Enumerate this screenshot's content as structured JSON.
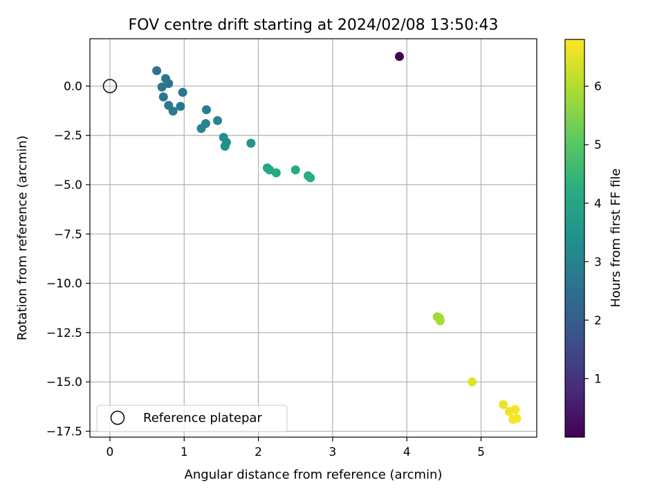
{
  "chart_data": {
    "type": "scatter",
    "title": "FOV centre drift starting at 2024/02/08 13:50:43",
    "xlabel": "Angular distance from reference (arcmin)",
    "ylabel": "Rotation from reference (arcmin)",
    "xlim": [
      -0.27,
      5.75
    ],
    "ylim": [
      -17.8,
      2.4
    ],
    "xticks": [
      0,
      1,
      2,
      3,
      4,
      5
    ],
    "yticks": [
      0.0,
      -2.5,
      -5.0,
      -7.5,
      -10.0,
      -12.5,
      -15.0,
      -17.5
    ],
    "xtick_labels": [
      "0",
      "1",
      "2",
      "3",
      "4",
      "5"
    ],
    "ytick_labels": [
      "0.0",
      "−2.5",
      "−5.0",
      "−7.5",
      "−10.0",
      "−12.5",
      "−15.0",
      "−17.5"
    ],
    "grid": true,
    "legend": {
      "position": "lower-left",
      "entries": [
        "Reference platepar"
      ]
    },
    "reference_point": {
      "x": 0,
      "y": 0
    },
    "colorbar": {
      "label": "Hours from first FF file",
      "colormap": "viridis",
      "range": [
        0.0,
        6.8
      ],
      "ticks": [
        1,
        2,
        3,
        4,
        5,
        6
      ],
      "tick_labels": [
        "1",
        "2",
        "3",
        "4",
        "5",
        "6"
      ]
    },
    "series": [
      {
        "name": "FOV centre",
        "points": [
          {
            "x": 3.9,
            "y": 1.5,
            "hours": 0.0
          },
          {
            "x": 0.63,
            "y": 0.78,
            "hours": 2.6
          },
          {
            "x": 0.75,
            "y": 0.38,
            "hours": 2.6
          },
          {
            "x": 0.79,
            "y": 0.13,
            "hours": 2.65
          },
          {
            "x": 0.7,
            "y": -0.05,
            "hours": 2.65
          },
          {
            "x": 0.98,
            "y": -0.32,
            "hours": 2.7
          },
          {
            "x": 0.72,
            "y": -0.55,
            "hours": 2.7
          },
          {
            "x": 0.79,
            "y": -0.98,
            "hours": 2.75
          },
          {
            "x": 0.95,
            "y": -1.03,
            "hours": 2.75
          },
          {
            "x": 0.85,
            "y": -1.27,
            "hours": 2.8
          },
          {
            "x": 1.3,
            "y": -1.2,
            "hours": 3.0
          },
          {
            "x": 1.45,
            "y": -1.75,
            "hours": 3.05
          },
          {
            "x": 1.29,
            "y": -1.9,
            "hours": 3.05
          },
          {
            "x": 1.23,
            "y": -2.15,
            "hours": 3.1
          },
          {
            "x": 1.53,
            "y": -2.6,
            "hours": 3.3
          },
          {
            "x": 1.57,
            "y": -2.85,
            "hours": 3.35
          },
          {
            "x": 1.55,
            "y": -3.05,
            "hours": 3.4
          },
          {
            "x": 1.9,
            "y": -2.9,
            "hours": 3.5
          },
          {
            "x": 2.12,
            "y": -4.15,
            "hours": 4.0
          },
          {
            "x": 2.15,
            "y": -4.25,
            "hours": 4.05
          },
          {
            "x": 2.24,
            "y": -4.4,
            "hours": 4.1
          },
          {
            "x": 2.5,
            "y": -4.25,
            "hours": 4.15
          },
          {
            "x": 2.67,
            "y": -4.55,
            "hours": 4.2
          },
          {
            "x": 2.7,
            "y": -4.65,
            "hours": 4.25
          },
          {
            "x": 4.41,
            "y": -11.7,
            "hours": 5.8
          },
          {
            "x": 4.44,
            "y": -11.75,
            "hours": 5.85
          },
          {
            "x": 4.45,
            "y": -11.9,
            "hours": 5.9
          },
          {
            "x": 4.88,
            "y": -15.0,
            "hours": 6.5
          },
          {
            "x": 5.3,
            "y": -16.15,
            "hours": 6.6
          },
          {
            "x": 5.38,
            "y": -16.5,
            "hours": 6.65
          },
          {
            "x": 5.46,
            "y": -16.4,
            "hours": 6.7
          },
          {
            "x": 5.43,
            "y": -16.9,
            "hours": 6.7
          },
          {
            "x": 5.48,
            "y": -16.85,
            "hours": 6.75
          }
        ]
      }
    ]
  }
}
